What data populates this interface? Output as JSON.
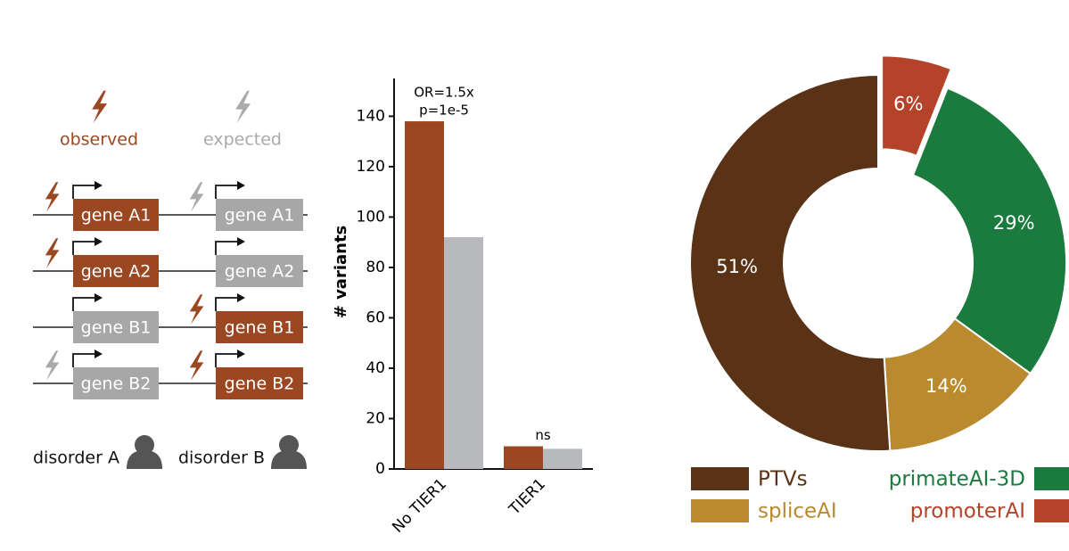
{
  "diagram": {
    "columns": [
      {
        "heading": "observed",
        "genes": [
          "gene A1",
          "gene A2",
          "gene B1",
          "gene B2"
        ],
        "disorder": "disorder A"
      },
      {
        "heading": "expected",
        "genes": [
          "gene A1",
          "gene A2",
          "gene B1",
          "gene B2"
        ],
        "disorder": "disorder B"
      }
    ]
  },
  "chart_data": [
    {
      "type": "bar",
      "categories": [
        "No TIER1",
        "TIER1"
      ],
      "series": [
        {
          "color": "#9b4722",
          "values": [
            138,
            9
          ]
        },
        {
          "color": "#b8b9bd",
          "values": [
            92,
            8
          ]
        }
      ],
      "annotations": [
        [
          "OR=1.5x",
          "p=1e-5"
        ],
        [
          "ns"
        ]
      ],
      "ylabel": "# variants",
      "ylim": [
        0,
        155
      ],
      "yticks": [
        0,
        20,
        40,
        60,
        80,
        100,
        120,
        140
      ]
    },
    {
      "type": "donut",
      "categories": [
        "promoterAI",
        "primateAI-3D",
        "spliceAI",
        "PTVs"
      ],
      "values": [
        6,
        29,
        14,
        51
      ],
      "value_labels": [
        "6%",
        "29%",
        "14%",
        "51%"
      ],
      "colors": [
        "#b5432a",
        "#1b7a3e",
        "#b98a2e",
        "#5a3216"
      ],
      "explode": [
        true,
        false,
        false,
        false
      ]
    }
  ]
}
